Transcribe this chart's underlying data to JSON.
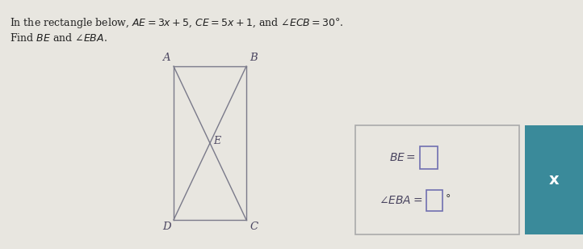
{
  "bg_color": "#e8e6e0",
  "title_line1": "In the rectangle below, $AE=3x+5$, $CE=5x+1$, and $\\measuredangle ECB=30\\degree$.",
  "title_line2": "Find $BE$ and $\\measuredangle EBA$.",
  "rect_color": "#7a7a8a",
  "label_color": "#4a4560",
  "answer_box_bg": "#e8e6e0",
  "answer_box_border": "#999999",
  "input_box_border": "#6666aa",
  "input_box_bg": "#e8e6e0",
  "teal_btn_color": "#3a8a9a",
  "teal_btn_text": "x"
}
